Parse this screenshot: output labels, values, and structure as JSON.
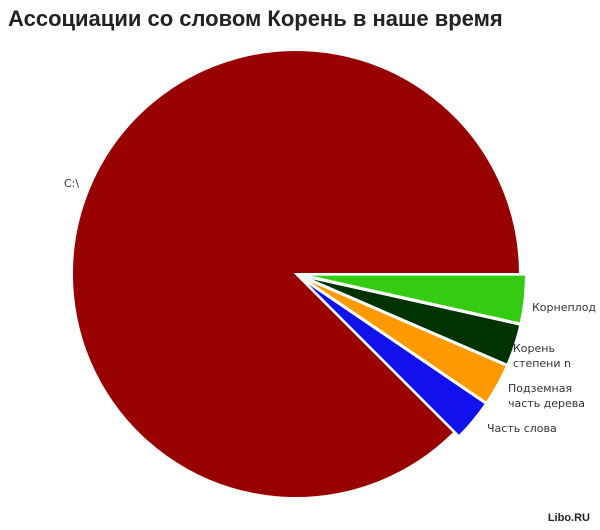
{
  "chart_data": {
    "type": "pie",
    "title": "Ассоциации со словом Корень в наше время",
    "slices": [
      {
        "label": "Корнеплод",
        "value": 3.5,
        "color": "#33cc11"
      },
      {
        "label": "Корень степени n",
        "value": 3.0,
        "color": "#003300"
      },
      {
        "label": "Подземная часть дерева",
        "value": 3.0,
        "color": "#ff9900"
      },
      {
        "label": "Часть слова",
        "value": 3.0,
        "color": "#1111ee"
      },
      {
        "label": "C:\\",
        "value": 87.5,
        "color": "#990000"
      }
    ],
    "exploded": "all slices except C:\\",
    "start": "3 o'clock, clockwise"
  },
  "watermark": "Libo.RU"
}
